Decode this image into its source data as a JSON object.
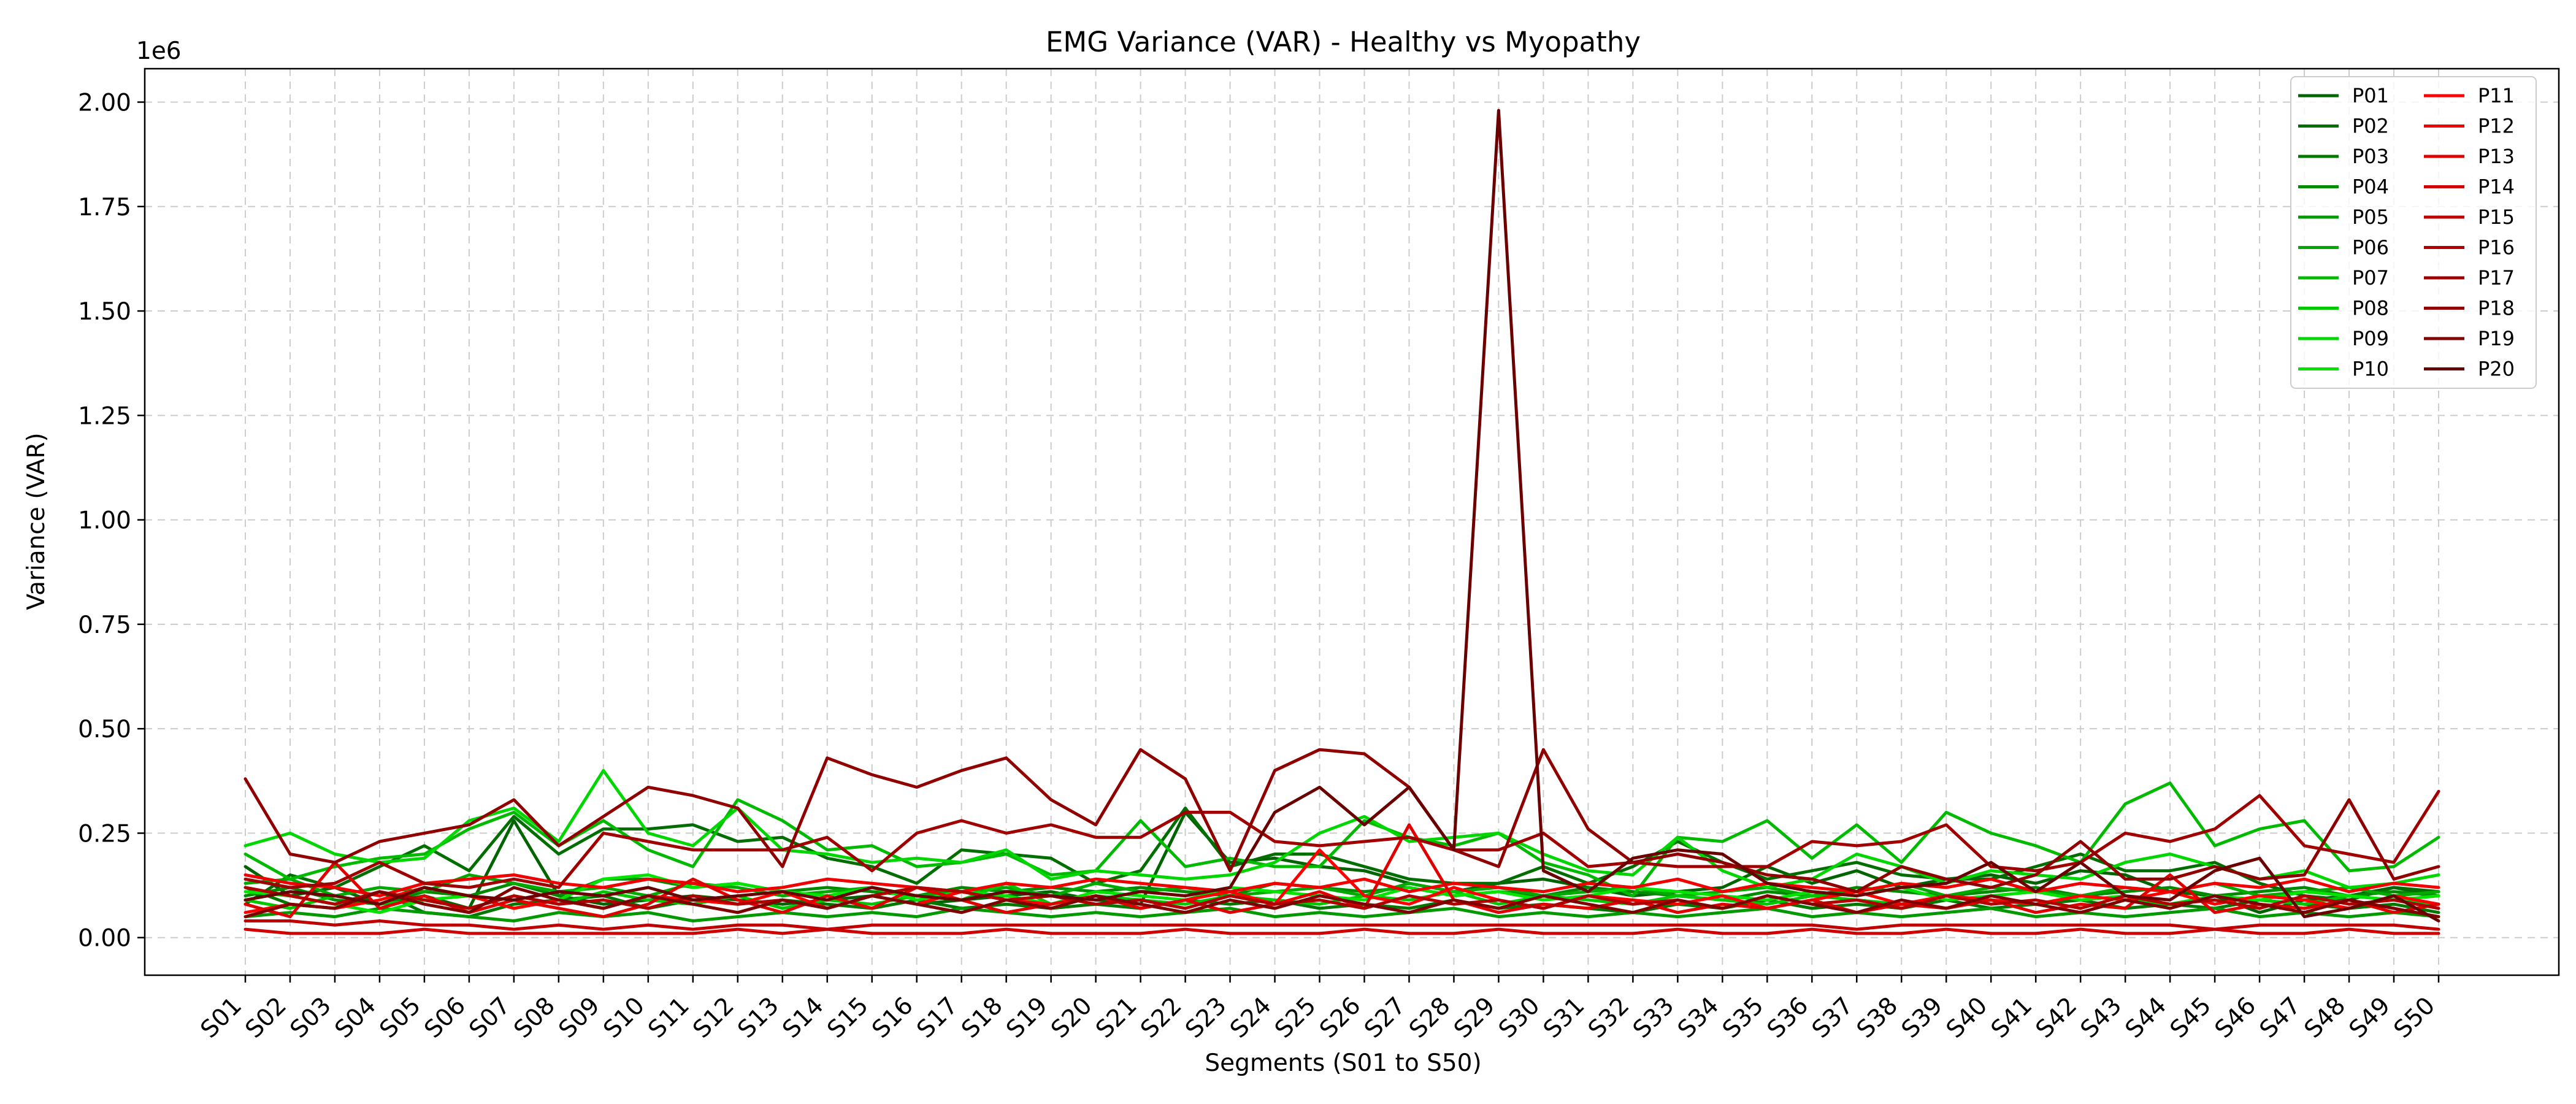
{
  "chart_data": {
    "type": "line",
    "title": "EMG Variance (VAR) - Healthy vs Myopathy",
    "xlabel": "Segments (S01 to S50)",
    "ylabel": "Variance (VAR)",
    "y_offset_label": "1e6",
    "ylim": [
      -0.09,
      2.08
    ],
    "yticks": [
      0.0,
      0.25,
      0.5,
      0.75,
      1.0,
      1.25,
      1.5,
      1.75,
      2.0
    ],
    "ytick_labels": [
      "0.00",
      "0.25",
      "0.50",
      "0.75",
      "1.00",
      "1.25",
      "1.50",
      "1.75",
      "2.00"
    ],
    "grid": true,
    "legend_position": "top-right",
    "categories": [
      "S01",
      "S02",
      "S03",
      "S04",
      "S05",
      "S06",
      "S07",
      "S08",
      "S09",
      "S10",
      "S11",
      "S12",
      "S13",
      "S14",
      "S15",
      "S16",
      "S17",
      "S18",
      "S19",
      "S20",
      "S21",
      "S22",
      "S23",
      "S24",
      "S25",
      "S26",
      "S27",
      "S28",
      "S29",
      "S30",
      "S31",
      "S32",
      "S33",
      "S34",
      "S35",
      "S36",
      "S37",
      "S38",
      "S39",
      "S40",
      "S41",
      "S42",
      "S43",
      "S44",
      "S45",
      "S46",
      "S47",
      "S48",
      "S49",
      "S50"
    ],
    "series": [
      {
        "name": "P01",
        "color": "#006400",
        "values": [
          0.17,
          0.1,
          0.12,
          0.08,
          0.1,
          0.07,
          0.28,
          0.1,
          0.08,
          0.09,
          0.1,
          0.09,
          0.08,
          0.09,
          0.1,
          0.08,
          0.09,
          0.1,
          0.11,
          0.09,
          0.08,
          0.3,
          0.18,
          0.19,
          0.17,
          0.16,
          0.13,
          0.11,
          0.13,
          0.14,
          0.12,
          0.1,
          0.11,
          0.12,
          0.17,
          0.13,
          0.16,
          0.12,
          0.14,
          0.15,
          0.13,
          0.16,
          0.15,
          0.11,
          0.1,
          0.06,
          0.09,
          0.1,
          0.12,
          0.1
        ]
      },
      {
        "name": "P02",
        "color": "#006e00",
        "values": [
          0.08,
          0.15,
          0.12,
          0.17,
          0.22,
          0.16,
          0.29,
          0.2,
          0.26,
          0.26,
          0.27,
          0.23,
          0.24,
          0.19,
          0.17,
          0.13,
          0.21,
          0.2,
          0.19,
          0.13,
          0.16,
          0.31,
          0.17,
          0.2,
          0.2,
          0.17,
          0.14,
          0.13,
          0.13,
          0.17,
          0.13,
          0.17,
          0.23,
          0.18,
          0.14,
          0.16,
          0.18,
          0.15,
          0.14,
          0.14,
          0.17,
          0.2,
          0.16,
          0.16,
          0.18,
          0.13,
          0.1,
          0.09,
          0.12,
          0.11
        ]
      },
      {
        "name": "P03",
        "color": "#007800",
        "values": [
          0.12,
          0.08,
          0.07,
          0.11,
          0.06,
          0.05,
          0.08,
          0.09,
          0.1,
          0.07,
          0.09,
          0.08,
          0.09,
          0.08,
          0.07,
          0.09,
          0.07,
          0.08,
          0.07,
          0.08,
          0.07,
          0.09,
          0.08,
          0.09,
          0.07,
          0.08,
          0.07,
          0.09,
          0.07,
          0.08,
          0.07,
          0.06,
          0.08,
          0.07,
          0.09,
          0.07,
          0.08,
          0.07,
          0.09,
          0.07,
          0.08,
          0.09,
          0.07,
          0.08,
          0.07,
          0.09,
          0.08,
          0.07,
          0.08,
          0.06
        ]
      },
      {
        "name": "P04",
        "color": "#008a00",
        "values": [
          0.1,
          0.12,
          0.09,
          0.08,
          0.11,
          0.1,
          0.13,
          0.1,
          0.14,
          0.14,
          0.12,
          0.13,
          0.11,
          0.12,
          0.11,
          0.1,
          0.12,
          0.11,
          0.12,
          0.11,
          0.12,
          0.11,
          0.1,
          0.13,
          0.12,
          0.11,
          0.12,
          0.1,
          0.11,
          0.1,
          0.12,
          0.11,
          0.1,
          0.09,
          0.11,
          0.1,
          0.12,
          0.11,
          0.1,
          0.11,
          0.12,
          0.1,
          0.11,
          0.12,
          0.1,
          0.11,
          0.12,
          0.1,
          0.11,
          0.1
        ]
      },
      {
        "name": "P05",
        "color": "#009a00",
        "values": [
          0.05,
          0.06,
          0.05,
          0.07,
          0.06,
          0.05,
          0.04,
          0.06,
          0.05,
          0.06,
          0.04,
          0.05,
          0.06,
          0.05,
          0.06,
          0.05,
          0.07,
          0.06,
          0.05,
          0.06,
          0.05,
          0.06,
          0.07,
          0.05,
          0.06,
          0.05,
          0.06,
          0.07,
          0.05,
          0.06,
          0.05,
          0.06,
          0.05,
          0.06,
          0.07,
          0.05,
          0.06,
          0.05,
          0.06,
          0.07,
          0.05,
          0.06,
          0.05,
          0.06,
          0.07,
          0.05,
          0.06,
          0.05,
          0.06,
          0.05
        ]
      },
      {
        "name": "P06",
        "color": "#00aa00",
        "values": [
          0.13,
          0.14,
          0.1,
          0.12,
          0.11,
          0.15,
          0.13,
          0.11,
          0.12,
          0.1,
          0.13,
          0.12,
          0.1,
          0.11,
          0.12,
          0.1,
          0.11,
          0.12,
          0.1,
          0.13,
          0.11,
          0.12,
          0.1,
          0.11,
          0.12,
          0.1,
          0.13,
          0.11,
          0.12,
          0.1,
          0.11,
          0.12,
          0.1,
          0.11,
          0.12,
          0.1,
          0.11,
          0.13,
          0.1,
          0.12,
          0.11,
          0.1,
          0.12,
          0.11,
          0.13,
          0.1,
          0.11,
          0.12,
          0.1,
          0.11
        ]
      },
      {
        "name": "P07",
        "color": "#00ba00",
        "values": [
          0.2,
          0.14,
          0.17,
          0.19,
          0.2,
          0.26,
          0.3,
          0.22,
          0.28,
          0.21,
          0.17,
          0.33,
          0.28,
          0.21,
          0.22,
          0.17,
          0.18,
          0.2,
          0.15,
          0.16,
          0.28,
          0.17,
          0.19,
          0.17,
          0.17,
          0.28,
          0.24,
          0.22,
          0.25,
          0.18,
          0.15,
          0.1,
          0.24,
          0.23,
          0.28,
          0.19,
          0.27,
          0.18,
          0.3,
          0.25,
          0.22,
          0.18,
          0.32,
          0.37,
          0.22,
          0.26,
          0.28,
          0.16,
          0.17,
          0.24
        ]
      },
      {
        "name": "P08",
        "color": "#00c800",
        "values": [
          0.09,
          0.07,
          0.1,
          0.08,
          0.09,
          0.07,
          0.1,
          0.08,
          0.11,
          0.09,
          0.08,
          0.1,
          0.07,
          0.09,
          0.08,
          0.1,
          0.09,
          0.13,
          0.08,
          0.1,
          0.09,
          0.08,
          0.1,
          0.09,
          0.08,
          0.1,
          0.09,
          0.11,
          0.08,
          0.1,
          0.09,
          0.08,
          0.1,
          0.09,
          0.08,
          0.1,
          0.09,
          0.08,
          0.1,
          0.09,
          0.08,
          0.1,
          0.09,
          0.08,
          0.1,
          0.09,
          0.08,
          0.1,
          0.09,
          0.08
        ]
      },
      {
        "name": "P09",
        "color": "#00d600",
        "values": [
          0.22,
          0.25,
          0.2,
          0.18,
          0.19,
          0.28,
          0.31,
          0.23,
          0.4,
          0.25,
          0.22,
          0.31,
          0.21,
          0.2,
          0.18,
          0.19,
          0.18,
          0.21,
          0.14,
          0.16,
          0.15,
          0.14,
          0.15,
          0.18,
          0.25,
          0.29,
          0.23,
          0.24,
          0.25,
          0.2,
          0.16,
          0.15,
          0.24,
          0.16,
          0.12,
          0.14,
          0.2,
          0.17,
          0.13,
          0.16,
          0.15,
          0.14,
          0.18,
          0.2,
          0.17,
          0.14,
          0.16,
          0.12,
          0.13,
          0.15
        ]
      },
      {
        "name": "P10",
        "color": "#00e400",
        "values": [
          0.11,
          0.1,
          0.08,
          0.06,
          0.09,
          0.1,
          0.07,
          0.09,
          0.14,
          0.15,
          0.12,
          0.13,
          0.11,
          0.1,
          0.12,
          0.09,
          0.11,
          0.1,
          0.08,
          0.11,
          0.1,
          0.09,
          0.12,
          0.11,
          0.1,
          0.09,
          0.12,
          0.1,
          0.11,
          0.09,
          0.1,
          0.12,
          0.11,
          0.1,
          0.09,
          0.11,
          0.1,
          0.12,
          0.09,
          0.1,
          0.11,
          0.09,
          0.1,
          0.08,
          0.1,
          0.09,
          0.11,
          0.1,
          0.09,
          0.1
        ]
      },
      {
        "name": "P11",
        "color": "#ff0000",
        "values": [
          0.06,
          0.08,
          0.07,
          0.09,
          0.12,
          0.1,
          0.07,
          0.09,
          0.07,
          0.1,
          0.09,
          0.08,
          0.11,
          0.07,
          0.1,
          0.08,
          0.11,
          0.09,
          0.08,
          0.1,
          0.07,
          0.09,
          0.11,
          0.08,
          0.21,
          0.1,
          0.08,
          0.12,
          0.09,
          0.07,
          0.1,
          0.09,
          0.08,
          0.1,
          0.07,
          0.09,
          0.11,
          0.08,
          0.1,
          0.09,
          0.08,
          0.1,
          0.09,
          0.11,
          0.08,
          0.1,
          0.09,
          0.07,
          0.1,
          0.08
        ]
      },
      {
        "name": "P12",
        "color": "#f00000",
        "values": [
          0.15,
          0.13,
          0.12,
          0.1,
          0.13,
          0.14,
          0.15,
          0.13,
          0.12,
          0.14,
          0.13,
          0.11,
          0.12,
          0.14,
          0.13,
          0.12,
          0.11,
          0.13,
          0.12,
          0.14,
          0.13,
          0.12,
          0.11,
          0.13,
          0.12,
          0.14,
          0.11,
          0.13,
          0.12,
          0.11,
          0.13,
          0.12,
          0.14,
          0.11,
          0.13,
          0.12,
          0.11,
          0.13,
          0.12,
          0.14,
          0.11,
          0.13,
          0.12,
          0.11,
          0.13,
          0.12,
          0.14,
          0.11,
          0.13,
          0.12
        ]
      },
      {
        "name": "P13",
        "color": "#e00000",
        "values": [
          0.08,
          0.05,
          0.18,
          0.07,
          0.1,
          0.06,
          0.09,
          0.07,
          0.05,
          0.08,
          0.14,
          0.09,
          0.06,
          0.1,
          0.07,
          0.12,
          0.09,
          0.06,
          0.08,
          0.1,
          0.07,
          0.09,
          0.06,
          0.08,
          0.11,
          0.07,
          0.27,
          0.09,
          0.06,
          0.08,
          0.07,
          0.09,
          0.06,
          0.08,
          0.07,
          0.09,
          0.06,
          0.08,
          0.07,
          0.09,
          0.06,
          0.08,
          0.07,
          0.15,
          0.06,
          0.08,
          0.07,
          0.09,
          0.06,
          0.08
        ]
      },
      {
        "name": "P14",
        "color": "#d00000",
        "values": [
          0.02,
          0.01,
          0.01,
          0.01,
          0.02,
          0.01,
          0.01,
          0.01,
          0.01,
          0.01,
          0.01,
          0.02,
          0.01,
          0.02,
          0.01,
          0.01,
          0.01,
          0.02,
          0.01,
          0.01,
          0.01,
          0.02,
          0.01,
          0.01,
          0.01,
          0.02,
          0.01,
          0.01,
          0.02,
          0.01,
          0.01,
          0.01,
          0.02,
          0.01,
          0.01,
          0.02,
          0.01,
          0.01,
          0.02,
          0.01,
          0.01,
          0.02,
          0.01,
          0.01,
          0.02,
          0.01,
          0.01,
          0.02,
          0.01,
          0.01
        ]
      },
      {
        "name": "P15",
        "color": "#c00000",
        "values": [
          0.04,
          0.04,
          0.03,
          0.04,
          0.03,
          0.03,
          0.02,
          0.03,
          0.02,
          0.03,
          0.02,
          0.03,
          0.03,
          0.02,
          0.03,
          0.03,
          0.03,
          0.03,
          0.03,
          0.03,
          0.03,
          0.03,
          0.03,
          0.03,
          0.03,
          0.03,
          0.03,
          0.03,
          0.03,
          0.03,
          0.03,
          0.03,
          0.03,
          0.03,
          0.03,
          0.03,
          0.02,
          0.03,
          0.03,
          0.03,
          0.03,
          0.03,
          0.03,
          0.03,
          0.02,
          0.03,
          0.03,
          0.03,
          0.03,
          0.02
        ]
      },
      {
        "name": "P16",
        "color": "#b00000",
        "values": [
          0.12,
          0.1,
          0.08,
          0.11,
          0.09,
          0.07,
          0.1,
          0.08,
          0.09,
          0.07,
          0.1,
          0.08,
          0.09,
          0.07,
          0.1,
          0.12,
          0.11,
          0.09,
          0.1,
          0.08,
          0.09,
          0.07,
          0.1,
          0.08,
          0.09,
          0.07,
          0.1,
          0.08,
          0.09,
          0.07,
          0.1,
          0.08,
          0.09,
          0.07,
          0.1,
          0.08,
          0.09,
          0.07,
          0.1,
          0.08,
          0.09,
          0.07,
          0.1,
          0.08,
          0.09,
          0.07,
          0.1,
          0.08,
          0.09,
          0.07
        ]
      },
      {
        "name": "P17",
        "color": "#a00000",
        "values": [
          0.14,
          0.12,
          0.13,
          0.18,
          0.13,
          0.12,
          0.14,
          0.12,
          0.25,
          0.23,
          0.21,
          0.21,
          0.21,
          0.24,
          0.16,
          0.25,
          0.28,
          0.25,
          0.27,
          0.24,
          0.24,
          0.3,
          0.3,
          0.23,
          0.22,
          0.23,
          0.24,
          0.21,
          0.21,
          0.25,
          0.17,
          0.18,
          0.17,
          0.17,
          0.17,
          0.23,
          0.22,
          0.23,
          0.27,
          0.17,
          0.16,
          0.18,
          0.25,
          0.23,
          0.26,
          0.34,
          0.22,
          0.2,
          0.18,
          0.35
        ]
      },
      {
        "name": "P18",
        "color": "#900000",
        "values": [
          0.38,
          0.2,
          0.18,
          0.23,
          0.25,
          0.27,
          0.33,
          0.22,
          0.29,
          0.36,
          0.34,
          0.31,
          0.17,
          0.43,
          0.39,
          0.36,
          0.4,
          0.43,
          0.33,
          0.27,
          0.45,
          0.38,
          0.16,
          0.4,
          0.45,
          0.44,
          0.36,
          0.21,
          0.17,
          0.45,
          0.26,
          0.18,
          0.2,
          0.18,
          0.15,
          0.14,
          0.11,
          0.17,
          0.14,
          0.12,
          0.15,
          0.23,
          0.14,
          0.14,
          0.17,
          0.14,
          0.15,
          0.33,
          0.14,
          0.17
        ]
      },
      {
        "name": "P19",
        "color": "#800000",
        "values": [
          0.05,
          0.08,
          0.07,
          0.11,
          0.08,
          0.06,
          0.12,
          0.09,
          0.07,
          0.1,
          0.08,
          0.06,
          0.09,
          0.07,
          0.1,
          0.08,
          0.06,
          0.09,
          0.07,
          0.1,
          0.08,
          0.06,
          0.09,
          0.07,
          0.1,
          0.08,
          0.06,
          0.09,
          0.07,
          0.1,
          0.08,
          0.06,
          0.09,
          0.07,
          0.1,
          0.08,
          0.06,
          0.09,
          0.07,
          0.1,
          0.08,
          0.06,
          0.09,
          0.07,
          0.1,
          0.08,
          0.06,
          0.09,
          0.07,
          0.05
        ]
      },
      {
        "name": "P20",
        "color": "#6b0000",
        "values": [
          0.09,
          0.11,
          0.1,
          0.08,
          0.12,
          0.1,
          0.09,
          0.11,
          0.1,
          0.12,
          0.09,
          0.1,
          0.11,
          0.09,
          0.12,
          0.1,
          0.09,
          0.11,
          0.1,
          0.09,
          0.11,
          0.1,
          0.12,
          0.3,
          0.36,
          0.27,
          0.36,
          0.21,
          1.98,
          0.16,
          0.11,
          0.19,
          0.21,
          0.2,
          0.13,
          0.11,
          0.1,
          0.12,
          0.13,
          0.18,
          0.11,
          0.18,
          0.1,
          0.09,
          0.16,
          0.19,
          0.05,
          0.07,
          0.1,
          0.04
        ]
      }
    ]
  }
}
